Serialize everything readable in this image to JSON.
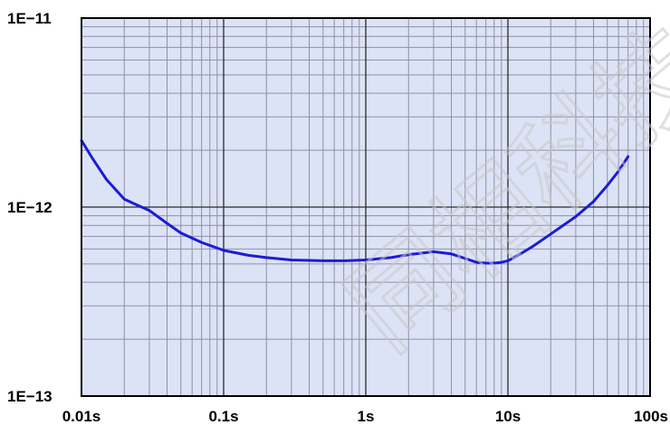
{
  "watermark": {
    "text": "同相科技"
  },
  "chart_data": {
    "type": "line",
    "title": "",
    "xlabel": "",
    "ylabel": "",
    "xscale": "log",
    "yscale": "log",
    "xlim": [
      0.01,
      100
    ],
    "ylim": [
      1e-13,
      1e-11
    ],
    "grid": true,
    "x_ticks": [
      {
        "value": 0.01,
        "label": "0.01s"
      },
      {
        "value": 0.1,
        "label": "0.1s"
      },
      {
        "value": 1,
        "label": "1s"
      },
      {
        "value": 10,
        "label": "10s"
      },
      {
        "value": 100,
        "label": "100s"
      }
    ],
    "y_ticks": [
      {
        "value": 1e-11,
        "label": "1E−11"
      },
      {
        "value": 1e-12,
        "label": "1E−12"
      },
      {
        "value": 1e-13,
        "label": "1E−13"
      }
    ],
    "colors": {
      "plot_background": "#dde3f6",
      "curve": "#1c1cd6",
      "major_grid": "#2a2a2a",
      "minor_grid": "#8f8fa8",
      "frame": "#000000"
    },
    "series": [
      {
        "x": [
          0.01,
          0.012,
          0.015,
          0.02,
          0.025,
          0.03,
          0.04,
          0.05,
          0.07,
          0.1,
          0.15,
          0.2,
          0.3,
          0.5,
          0.7,
          1,
          1.5,
          2,
          3,
          4,
          5,
          6,
          7,
          8,
          9,
          10,
          12,
          15,
          20,
          30,
          40,
          50,
          60,
          70
        ],
        "y": [
          2.25e-12,
          1.8e-12,
          1.4e-12,
          1.1e-12,
          1.02e-12,
          9.6e-13,
          8.2e-13,
          7.3e-13,
          6.5e-13,
          5.9e-13,
          5.55e-13,
          5.4e-13,
          5.25e-13,
          5.2e-13,
          5.2e-13,
          5.25e-13,
          5.4e-13,
          5.6e-13,
          5.8e-13,
          5.65e-13,
          5.35e-13,
          5.1e-13,
          5.05e-13,
          5.05e-13,
          5.1e-13,
          5.2e-13,
          5.6e-13,
          6.2e-13,
          7.2e-13,
          8.9e-13,
          1.07e-12,
          1.3e-12,
          1.55e-12,
          1.85e-12
        ]
      }
    ]
  }
}
